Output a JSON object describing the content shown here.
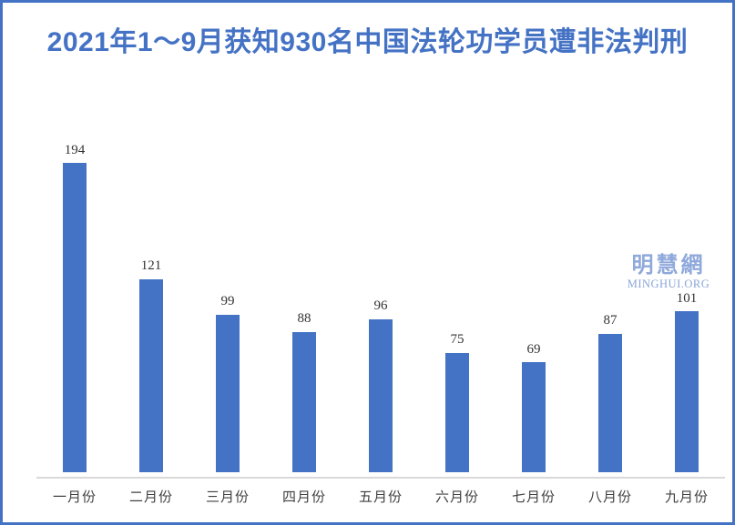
{
  "page": {
    "background": "#ffffff",
    "border_color": "#4472C4"
  },
  "header": {
    "title": "2021年1～9月获知930名中国法轮功学员遭非法判刑",
    "title_color": "#4472C4"
  },
  "watermark": {
    "cjk": "明慧網",
    "url": "MINGHUI.ORG",
    "color": "#8FA9DB"
  },
  "chart_data": {
    "type": "bar",
    "title": "2021年1～9月获知930名中国法轮功学员遭非法判刑",
    "categories": [
      "一月份",
      "二月份",
      "三月份",
      "四月份",
      "五月份",
      "六月份",
      "七月份",
      "八月份",
      "九月份"
    ],
    "values": [
      194,
      121,
      99,
      88,
      96,
      75,
      69,
      87,
      101
    ],
    "total": 930,
    "bar_color": "#4472C4",
    "data_label_color": "#333333",
    "axis_label_color": "#404040",
    "axis_line_color": "#D9D9D9",
    "xlabel": "",
    "ylabel": "",
    "ylim": [
      0,
      200
    ],
    "grid": false,
    "legend": false,
    "data_labels": true
  }
}
